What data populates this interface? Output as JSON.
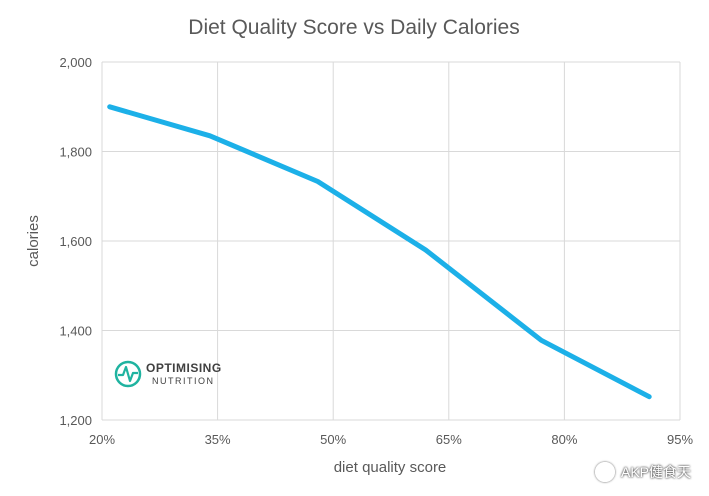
{
  "chart_data": {
    "type": "line",
    "title": "Diet Quality Score vs Daily Calories",
    "xlabel": "diet quality score",
    "ylabel": "calories",
    "x_ticks": [
      "20%",
      "35%",
      "50%",
      "65%",
      "80%",
      "95%"
    ],
    "y_ticks": [
      "1,200",
      "1,400",
      "1,600",
      "1,800",
      "2,000"
    ],
    "xlim": [
      20,
      95
    ],
    "ylim": [
      1200,
      2000
    ],
    "grid": true,
    "series": [
      {
        "name": "calories",
        "color": "#1cb0e8",
        "x": [
          21,
          34,
          48,
          62,
          77,
          91
        ],
        "y": [
          1900,
          1835,
          1733,
          1580,
          1378,
          1252
        ]
      }
    ]
  },
  "logo": {
    "line1": "OPTIMISING",
    "line2": "NUTRITION",
    "color": "#1fb3a0"
  },
  "watermark": {
    "text": "AKP健食天"
  }
}
